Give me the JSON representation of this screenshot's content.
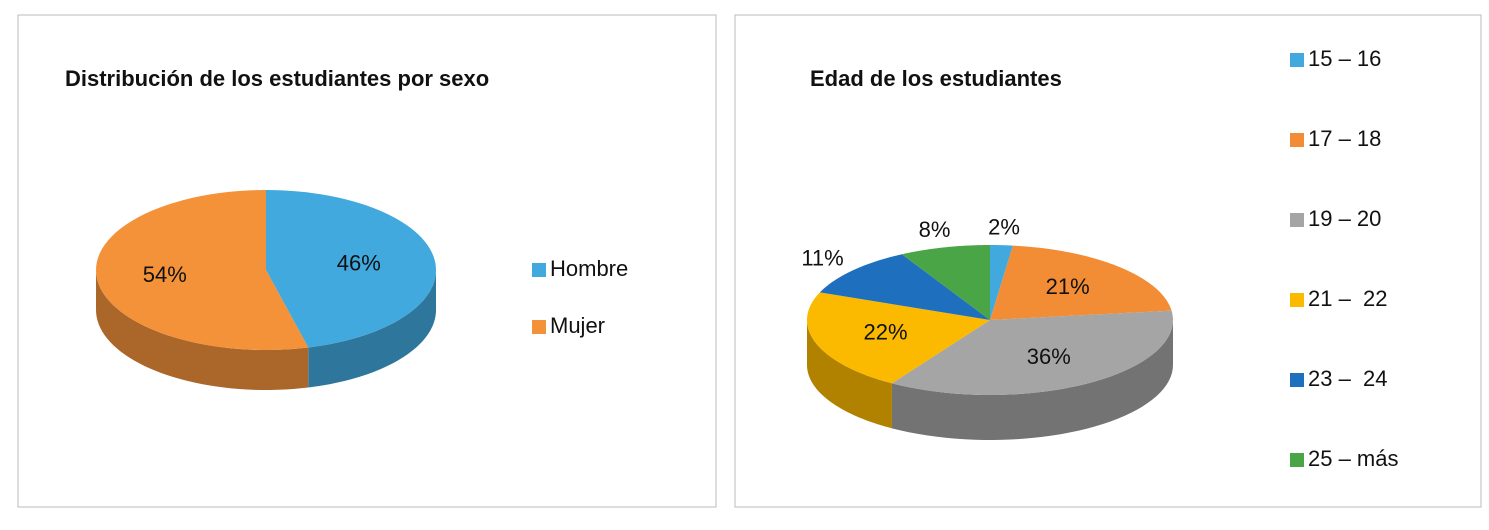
{
  "chart_data": [
    {
      "type": "pie",
      "title": "Distribución de los estudiantes por sexo",
      "categories": [
        "Hombre",
        "Mujer"
      ],
      "values": [
        46,
        54
      ],
      "value_labels": [
        "46%",
        "54%"
      ],
      "colors": [
        "#41a9dd",
        "#f4923a"
      ]
    },
    {
      "type": "pie",
      "title": "Edad de los estudiantes",
      "categories": [
        "15 – 16",
        "17 – 18",
        "19 – 20",
        "21 –  22",
        "23 –  24",
        "25 – más"
      ],
      "values": [
        2,
        21,
        36,
        22,
        11,
        8
      ],
      "value_labels": [
        "2%",
        "21%",
        "36%",
        "22%",
        "11%",
        "8%"
      ],
      "colors": [
        "#41a9dd",
        "#f28c35",
        "#a5a5a5",
        "#fbb900",
        "#1f6fbf",
        "#4aa547"
      ]
    }
  ]
}
